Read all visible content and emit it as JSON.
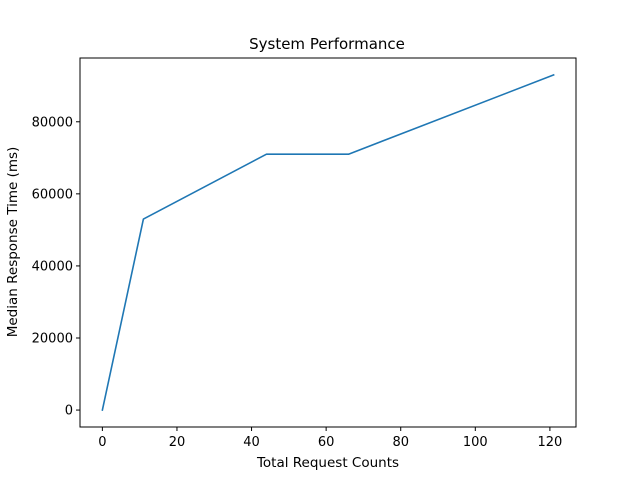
{
  "chart_data": {
    "type": "line",
    "title": "System Performance",
    "xlabel": "Total Request Counts",
    "ylabel": "Median Response Time (ms)",
    "xlim": [
      -6,
      127
    ],
    "ylim": [
      -4700,
      97700
    ],
    "x_ticks": [
      0,
      20,
      40,
      60,
      80,
      100,
      120
    ],
    "y_ticks": [
      0,
      20000,
      40000,
      60000,
      80000
    ],
    "grid": false,
    "legend": "none",
    "series": [
      {
        "color": "#1f77b4",
        "x": [
          0,
          11,
          44,
          66,
          121
        ],
        "y": [
          0,
          53000,
          71000,
          71000,
          93000
        ]
      }
    ]
  }
}
